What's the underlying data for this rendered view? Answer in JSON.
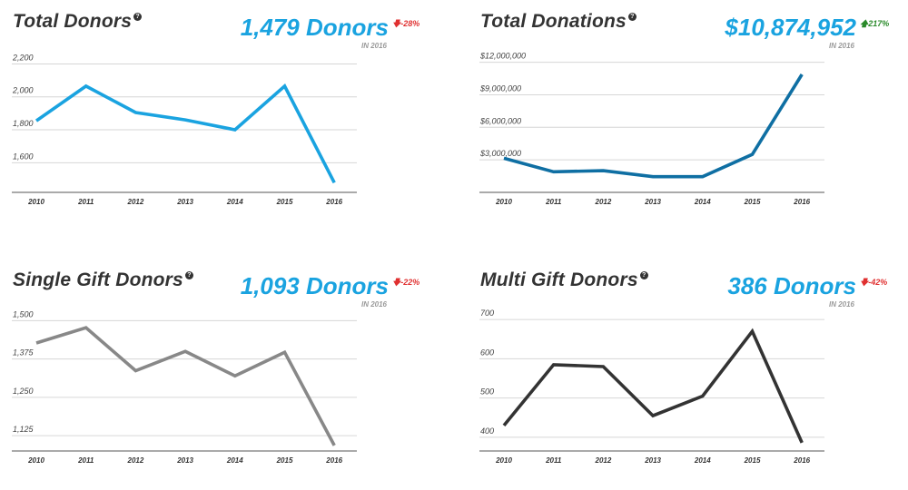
{
  "colors": {
    "accent": "#1aa3e0",
    "down": "#e03030",
    "up": "#2a8a2a",
    "grid": "#d6d6d6",
    "axis": "#555555"
  },
  "icons": {
    "help": "question-circle-icon",
    "arrow_down": "arrow-down-icon",
    "arrow_up": "arrow-up-icon"
  },
  "panels": [
    {
      "title": "Total Donors",
      "big_value": "1,479 Donors",
      "change": "-28%",
      "direction": "down",
      "note": "IN 2016"
    },
    {
      "title": "Total Donations",
      "big_value": "$10,874,952",
      "change": "217%",
      "direction": "up",
      "note": "IN 2016"
    },
    {
      "title": "Single Gift Donors",
      "big_value": "1,093 Donors",
      "change": "-22%",
      "direction": "down",
      "note": "IN 2016"
    },
    {
      "title": "Multi Gift Donors",
      "big_value": "386 Donors",
      "change": "-42%",
      "direction": "down",
      "note": "IN 2016"
    }
  ],
  "chart_data": [
    {
      "type": "line",
      "title": "Total Donors",
      "x": [
        "2010",
        "2011",
        "2012",
        "2013",
        "2014",
        "2015",
        "2016"
      ],
      "series": [
        {
          "values": [
            1855,
            2065,
            1905,
            1860,
            1800,
            2065,
            1479
          ],
          "color": "#1aa3e0"
        }
      ],
      "yticks": [
        1600,
        1800,
        2000,
        2200
      ],
      "ytick_labels": [
        "1,600",
        "1,800",
        "2,000",
        "2,200"
      ],
      "ylim": [
        1420,
        2230
      ],
      "grid": true
    },
    {
      "type": "line",
      "title": "Total Donations",
      "x": [
        "2010",
        "2011",
        "2012",
        "2013",
        "2014",
        "2015",
        "2016"
      ],
      "series": [
        {
          "values": [
            3150000,
            1900000,
            2000000,
            1450000,
            1450000,
            3500000,
            10874952
          ],
          "color": "#0f6fa3"
        }
      ],
      "yticks": [
        3000000,
        6000000,
        9000000,
        12000000
      ],
      "ytick_labels": [
        "$3,000,000",
        "$6,000,000",
        "$9,000,000",
        "$12,000,000"
      ],
      "ylim": [
        0,
        12300000
      ],
      "grid": true
    },
    {
      "type": "line",
      "title": "Single Gift Donors",
      "x": [
        "2010",
        "2011",
        "2012",
        "2013",
        "2014",
        "2015",
        "2016"
      ],
      "series": [
        {
          "values": [
            1427,
            1477,
            1337,
            1400,
            1320,
            1397,
            1093
          ],
          "color": "#888888"
        }
      ],
      "yticks": [
        1125,
        1250,
        1375,
        1500
      ],
      "ytick_labels": [
        "1,125",
        "1,250",
        "1,375",
        "1,500"
      ],
      "ylim": [
        1075,
        1510
      ],
      "grid": true
    },
    {
      "type": "line",
      "title": "Multi Gift Donors",
      "x": [
        "2010",
        "2011",
        "2012",
        "2013",
        "2014",
        "2015",
        "2016"
      ],
      "series": [
        {
          "values": [
            430,
            585,
            580,
            455,
            505,
            670,
            386
          ],
          "color": "#333333"
        }
      ],
      "yticks": [
        400,
        500,
        600,
        700
      ],
      "ytick_labels": [
        "400",
        "500",
        "600",
        "700"
      ],
      "ylim": [
        365,
        705
      ],
      "grid": true
    }
  ]
}
